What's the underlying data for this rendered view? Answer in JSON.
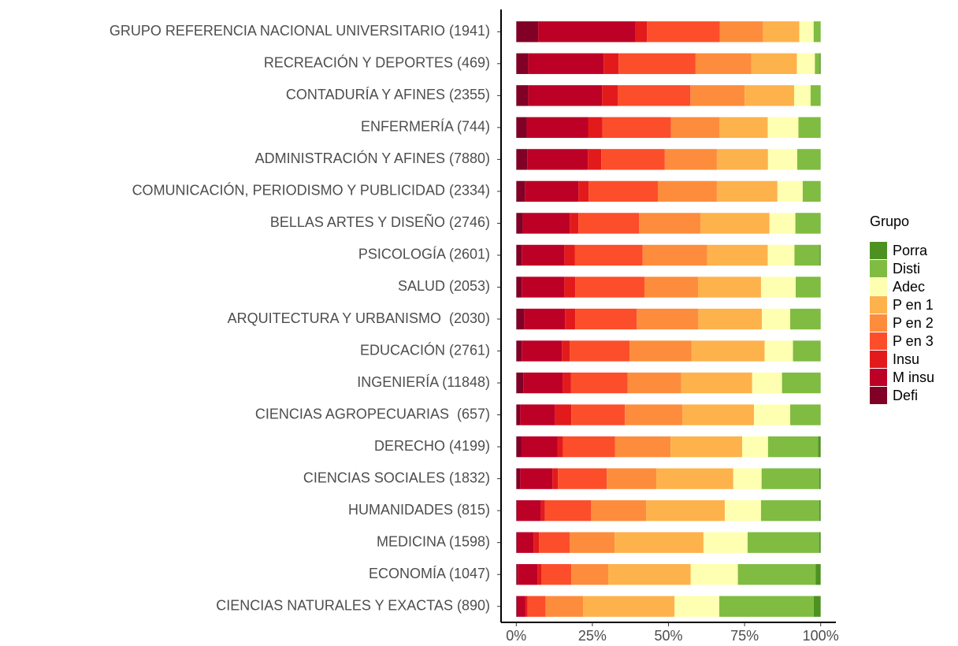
{
  "chart_data": {
    "type": "stacked_bar",
    "orientation": "horizontal",
    "categories": [
      "GRUPO REFERENCIA NACIONAL UNIVERSITARIO (1941)",
      "RECREACIÓN Y DEPORTES (469)",
      "CONTADURÍA Y AFINES (2355)",
      "ENFERMERÍA (744)",
      "ADMINISTRACIÓN Y AFINES (7880)",
      "COMUNICACIÓN, PERIODISMO Y PUBLICIDAD (2334)",
      "BELLAS ARTES Y DISEÑO (2746)",
      "PSICOLOGÍA (2601)",
      "SALUD (2053)",
      "ARQUITECTURA Y URBANISMO  (2030)",
      "EDUCACIÓN (2761)",
      "INGENIERÍA (11848)",
      "CIENCIAS AGROPECUARIAS  (657)",
      "DERECHO (4199)",
      "CIENCIAS SOCIALES (1832)",
      "HUMANIDADES (815)",
      "MEDICINA (1598)",
      "ECONOMÍA (1047)",
      "CIENCIAS NATURALES Y EXACTAS (890)"
    ],
    "series": [
      {
        "name": "Defi",
        "color": "#800026",
        "values": [
          7.2,
          3.9,
          3.9,
          3.4,
          3.6,
          2.8,
          2.1,
          1.8,
          1.8,
          2.6,
          1.8,
          2.3,
          1.3,
          1.6,
          1.3,
          0.3,
          0.3,
          0.5,
          0.3
        ]
      },
      {
        "name": "M insu",
        "color": "#bd0026",
        "values": [
          31.8,
          24.8,
          24.3,
          20.2,
          19.9,
          17.6,
          15.5,
          14.0,
          14.0,
          13.4,
          13.2,
          12.9,
          11.4,
          11.9,
          10.6,
          7.8,
          5.4,
          6.5,
          2.6
        ]
      },
      {
        "name": "Insu",
        "color": "#e31a1c",
        "values": [
          3.9,
          4.9,
          5.2,
          4.7,
          4.4,
          3.4,
          2.8,
          3.4,
          3.6,
          3.4,
          2.6,
          2.8,
          5.4,
          1.8,
          1.8,
          1.3,
          1.8,
          1.3,
          0.8
        ]
      },
      {
        "name": "P en 3",
        "color": "#fc4e2a",
        "values": [
          24.0,
          25.3,
          23.8,
          22.5,
          20.9,
          22.7,
          19.9,
          22.3,
          22.7,
          20.2,
          19.6,
          18.6,
          17.6,
          17.1,
          16.0,
          15.2,
          10.1,
          9.8,
          5.9
        ]
      },
      {
        "name": "P en 2",
        "color": "#fd8d3c",
        "values": [
          14.2,
          18.3,
          17.8,
          16.0,
          17.1,
          19.4,
          20.2,
          21.2,
          17.6,
          20.2,
          20.4,
          17.6,
          18.9,
          18.3,
          16.3,
          18.1,
          14.7,
          12.1,
          12.4
        ]
      },
      {
        "name": "P en 1",
        "color": "#feb24c",
        "values": [
          11.9,
          15.0,
          16.3,
          15.8,
          16.8,
          19.9,
          22.7,
          19.9,
          20.7,
          20.9,
          24.0,
          23.3,
          23.5,
          23.5,
          25.3,
          25.8,
          29.2,
          27.1,
          30.0
        ]
      },
      {
        "name": "Adec",
        "color": "#ffffb2",
        "values": [
          4.7,
          5.9,
          5.4,
          10.1,
          9.6,
          8.3,
          8.5,
          8.8,
          11.4,
          9.3,
          9.3,
          9.8,
          11.9,
          8.5,
          9.3,
          11.9,
          14.5,
          15.5,
          14.7
        ]
      },
      {
        "name": "Disti",
        "color": "#7fbc41",
        "values": [
          2.3,
          1.6,
          3.3,
          7.3,
          7.7,
          5.9,
          8.3,
          8.3,
          8.2,
          10.0,
          9.1,
          12.7,
          10.0,
          16.5,
          18.9,
          19.1,
          23.5,
          25.6,
          31.0
        ]
      },
      {
        "name": "Porra",
        "color": "#4d9221",
        "values": [
          0,
          0.3,
          0,
          0,
          0,
          0,
          0,
          0.3,
          0,
          0,
          0,
          0,
          0,
          0.8,
          0.5,
          0.5,
          0.5,
          1.6,
          2.3
        ]
      }
    ],
    "xlim": [
      -5,
      105
    ],
    "xticks": [
      {
        "value": 0,
        "label": "0%"
      },
      {
        "value": 25,
        "label": "25%"
      },
      {
        "value": 50,
        "label": "50%"
      },
      {
        "value": 75,
        "label": "75%"
      },
      {
        "value": 100,
        "label": "100%"
      }
    ],
    "legend_title": "Grupo",
    "legend_position": "right",
    "grid": false
  }
}
